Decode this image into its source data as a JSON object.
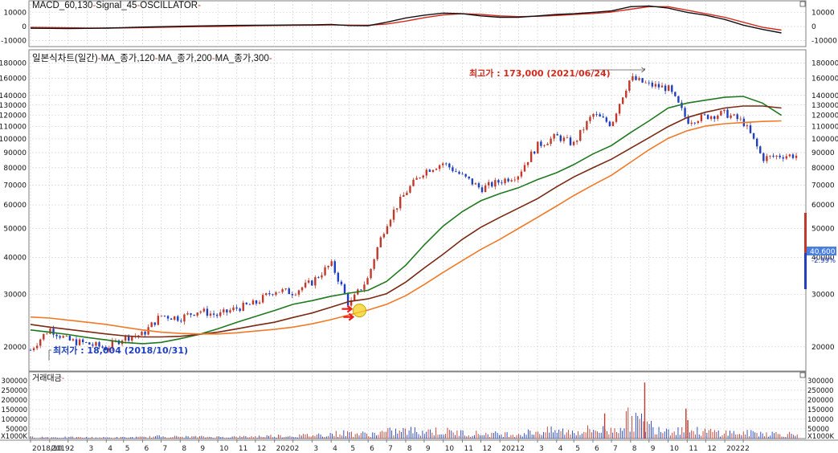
{
  "colors": {
    "grid": "#cfcfcf",
    "frame": "#7f7f7f",
    "bull": "#c0392b",
    "bear": "#1f3fbf",
    "ma120": "#1f7a1f",
    "ma200": "#7a2a12",
    "ma300": "#f07a28",
    "macd": "#111111",
    "signal": "#d42a1e",
    "annot_high": "#d42a1e",
    "annot_low": "#1f3fbf",
    "price_tag": "#4a7fe0",
    "arrow": "#e81e1e",
    "highlight": "#f5d020"
  },
  "panels": {
    "macd": {
      "title_parts": [
        "MACD_60,130",
        "-",
        "Signal_45",
        "-",
        "OSCILLATOR",
        "-"
      ],
      "y_ticks": [
        "10000",
        "0",
        "-10000"
      ],
      "y_ticks_left": [
        "10000",
        "0",
        "-10000"
      ]
    },
    "price": {
      "title_parts": [
        "일본식차트(일간)",
        "-",
        "MA_종가,120",
        "-",
        "MA_종가,200",
        "-",
        "MA_종가,300",
        "-"
      ],
      "y_ticks": [
        "180000",
        "160000",
        "140000",
        "130000",
        "120000",
        "110000",
        "100000",
        "90000",
        "80000",
        "70000",
        "60000",
        "50000",
        "40000",
        "30000",
        "20000"
      ],
      "high_label": "최고가 : 173,000 (2021/06/24)",
      "low_label": "최저가 : 18,004 (2018/10/31)",
      "last_price": "40,600",
      "last_change": "-2.99%"
    },
    "volume": {
      "title_parts": [
        "거래대금",
        "-"
      ],
      "y_ticks": [
        "300000",
        "250000",
        "200000",
        "150000",
        "100000",
        "50000",
        "X1000K"
      ],
      "y_ticks_left": [
        "300000",
        "250000",
        "200000",
        "150000",
        "100000",
        "50000",
        "X1000K"
      ]
    }
  },
  "x_axis": {
    "labels": [
      "2018/10",
      "2019",
      "2",
      "3",
      "4",
      "5",
      "6",
      "7",
      "8",
      "9",
      "10",
      "11",
      "12",
      "2020",
      "2",
      "3",
      "4",
      "5",
      "6",
      "7",
      "8",
      "9",
      "10",
      "11",
      "12",
      "2021",
      "2",
      "3",
      "4",
      "5",
      "6",
      "7",
      "8",
      "9",
      "10",
      "11",
      "12",
      "2022",
      "2"
    ]
  },
  "chart_data": {
    "type": "line",
    "title": "일본식차트(일간)",
    "ylabel": "",
    "yscale": "log",
    "ylim": [
      17000,
      185000
    ],
    "x": [
      "2018-10-01",
      "2018-11-01",
      "2018-12-01",
      "2019-01-01",
      "2019-02-01",
      "2019-03-01",
      "2019-04-01",
      "2019-05-01",
      "2019-06-01",
      "2019-07-01",
      "2019-08-01",
      "2019-09-01",
      "2019-10-01",
      "2019-11-01",
      "2019-12-01",
      "2020-01-01",
      "2020-02-01",
      "2020-03-01",
      "2020-04-01",
      "2020-05-01",
      "2020-06-01",
      "2020-07-01",
      "2020-08-01",
      "2020-09-01",
      "2020-10-01",
      "2020-11-01",
      "2020-12-01",
      "2021-01-01",
      "2021-02-01",
      "2021-03-01",
      "2021-04-01",
      "2021-05-01",
      "2021-06-01",
      "2021-07-01",
      "2021-08-01",
      "2021-09-01",
      "2021-10-01",
      "2021-11-01",
      "2021-12-01",
      "2022-01-01",
      "2022-02-01"
    ],
    "series": [
      {
        "name": "일본식차트(일간)",
        "values": [
          19500,
          23000,
          21000,
          20500,
          19800,
          21500,
          22000,
          25500,
          25000,
          26500,
          25500,
          27000,
          28000,
          31000,
          30500,
          33000,
          38000,
          27500,
          34000,
          52000,
          66000,
          78000,
          83000,
          75000,
          68000,
          72000,
          76000,
          95000,
          102000,
          96000,
          121000,
          112000,
          160000,
          152000,
          148000,
          115000,
          119000,
          122000,
          114000,
          86000,
          88000
        ]
      },
      {
        "name": "MA_종가,120",
        "values": [
          22800,
          22400,
          22000,
          21500,
          21100,
          20700,
          20500,
          20700,
          21300,
          22000,
          23000,
          24200,
          25300,
          26500,
          27800,
          28600,
          29600,
          30300,
          31000,
          33200,
          37600,
          44000,
          51000,
          57000,
          62000,
          65500,
          68500,
          73000,
          77000,
          82000,
          89000,
          95000,
          105000,
          115000,
          127000,
          132000,
          135000,
          138000,
          139000,
          132000,
          120000
        ]
      },
      {
        "name": "MA_종가,200",
        "values": [
          23800,
          23300,
          22900,
          22500,
          22100,
          21800,
          21600,
          21600,
          21700,
          22000,
          22400,
          23000,
          23600,
          24200,
          25100,
          26000,
          27200,
          28400,
          29000,
          30200,
          33000,
          36800,
          41000,
          46000,
          50500,
          54500,
          58500,
          63000,
          69000,
          74500,
          80000,
          85500,
          93000,
          101000,
          110000,
          118000,
          123000,
          127000,
          129000,
          129000,
          127000
        ]
      },
      {
        "name": "MA_종가,300",
        "values": [
          25200,
          25000,
          24600,
          24200,
          23800,
          23300,
          22800,
          22400,
          22200,
          22100,
          22100,
          22300,
          22600,
          22900,
          23300,
          23900,
          24700,
          25600,
          26600,
          27800,
          29700,
          32400,
          35600,
          39000,
          42500,
          46000,
          50000,
          54500,
          59500,
          64500,
          70000,
          75500,
          83500,
          92000,
          100500,
          106500,
          110500,
          112500,
          113500,
          114500,
          115000
        ]
      }
    ],
    "macd": {
      "ylim": [
        -13000,
        17000
      ],
      "series": [
        {
          "name": "MACD_60,130",
          "values": [
            -1200,
            -1300,
            -1400,
            -1300,
            -1100,
            -800,
            -400,
            -100,
            200,
            400,
            600,
            800,
            900,
            1000,
            1100,
            1200,
            1500,
            700,
            600,
            3000,
            6000,
            8000,
            9500,
            9000,
            7500,
            6500,
            6500,
            7500,
            8500,
            9000,
            10000,
            11000,
            14000,
            14500,
            13000,
            10000,
            8000,
            5000,
            1000,
            -2000,
            -4500
          ]
        },
        {
          "name": "Signal_45",
          "values": [
            -600,
            -700,
            -900,
            -1100,
            -1100,
            -1000,
            -800,
            -600,
            -300,
            -100,
            100,
            300,
            500,
            700,
            800,
            900,
            1100,
            1000,
            900,
            1800,
            3800,
            6200,
            8200,
            9000,
            8500,
            7500,
            7000,
            7200,
            7800,
            8500,
            9200,
            10200,
            12200,
            14000,
            14000,
            11500,
            9000,
            6500,
            3000,
            -500,
            -2500
          ]
        }
      ]
    },
    "volume": {
      "ylim": [
        0,
        320000
      ],
      "values": [
        8000,
        7000,
        6500,
        6000,
        5500,
        6000,
        7000,
        12000,
        9000,
        9500,
        8500,
        9000,
        11000,
        15000,
        14000,
        18000,
        25000,
        30000,
        22000,
        35000,
        40000,
        42000,
        38000,
        30000,
        26000,
        24000,
        25000,
        38000,
        40000,
        36000,
        48000,
        42000,
        110000,
        70000,
        52000,
        42000,
        36000,
        32000,
        28000,
        30000,
        24000
      ],
      "peaks": [
        {
          "x": "2021-04-20",
          "value": 130000
        },
        {
          "x": "2021-06-24",
          "value": 290000
        },
        {
          "x": "2021-08-30",
          "value": 155000
        },
        {
          "x": "2021-09-02",
          "value": 95000
        }
      ]
    },
    "annotations": [
      {
        "x": "2021-06-24",
        "value": 173000,
        "text": "최고가 : 173,000 (2021/06/24)"
      },
      {
        "x": "2018-10-31",
        "value": 18004,
        "text": "최저가 : 18,004 (2018/10/31)"
      }
    ]
  }
}
